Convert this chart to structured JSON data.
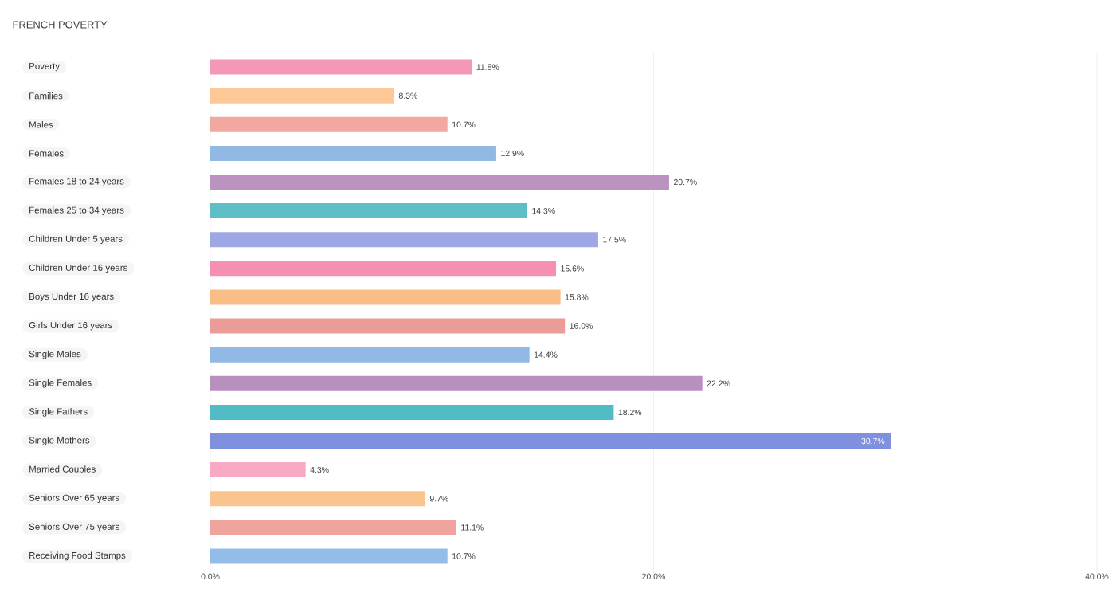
{
  "chart_data": {
    "type": "bar",
    "orientation": "horizontal",
    "title": "FRENCH POVERTY",
    "categories": [
      "Poverty",
      "Families",
      "Males",
      "Females",
      "Females 18 to 24 years",
      "Females 25 to 34 years",
      "Children Under 5 years",
      "Children Under 16 years",
      "Boys Under 16 years",
      "Girls Under 16 years",
      "Single Males",
      "Single Females",
      "Single Fathers",
      "Single Mothers",
      "Married Couples",
      "Seniors Over 65 years",
      "Seniors Over 75 years",
      "Receiving Food Stamps"
    ],
    "values": [
      11.8,
      8.3,
      10.7,
      12.9,
      20.7,
      14.3,
      17.5,
      15.6,
      15.8,
      16.0,
      14.4,
      22.2,
      18.2,
      30.7,
      4.3,
      9.7,
      11.1,
      10.7
    ],
    "value_labels": [
      "11.8%",
      "8.3%",
      "10.7%",
      "12.9%",
      "20.7%",
      "14.3%",
      "17.5%",
      "15.6%",
      "15.8%",
      "16.0%",
      "14.4%",
      "22.2%",
      "18.2%",
      "30.7%",
      "4.3%",
      "9.7%",
      "11.1%",
      "10.7%"
    ],
    "colors": [
      "#f598b5",
      "#fbc896",
      "#f0a8a0",
      "#92b8e4",
      "#bb92c0",
      "#5fbfc6",
      "#9ea8e4",
      "#f590b0",
      "#f9be88",
      "#ec9c98",
      "#92b8e6",
      "#b790c0",
      "#52bcc6",
      "#7e90de",
      "#f7a8c2",
      "#fac48e",
      "#f0a49e",
      "#94bce8"
    ],
    "xlim": [
      0,
      40
    ],
    "xticks": [
      {
        "value": 0,
        "label": "0.0%"
      },
      {
        "value": 20,
        "label": "20.0%"
      },
      {
        "value": 40,
        "label": "40.0%"
      }
    ],
    "grid": "x"
  }
}
